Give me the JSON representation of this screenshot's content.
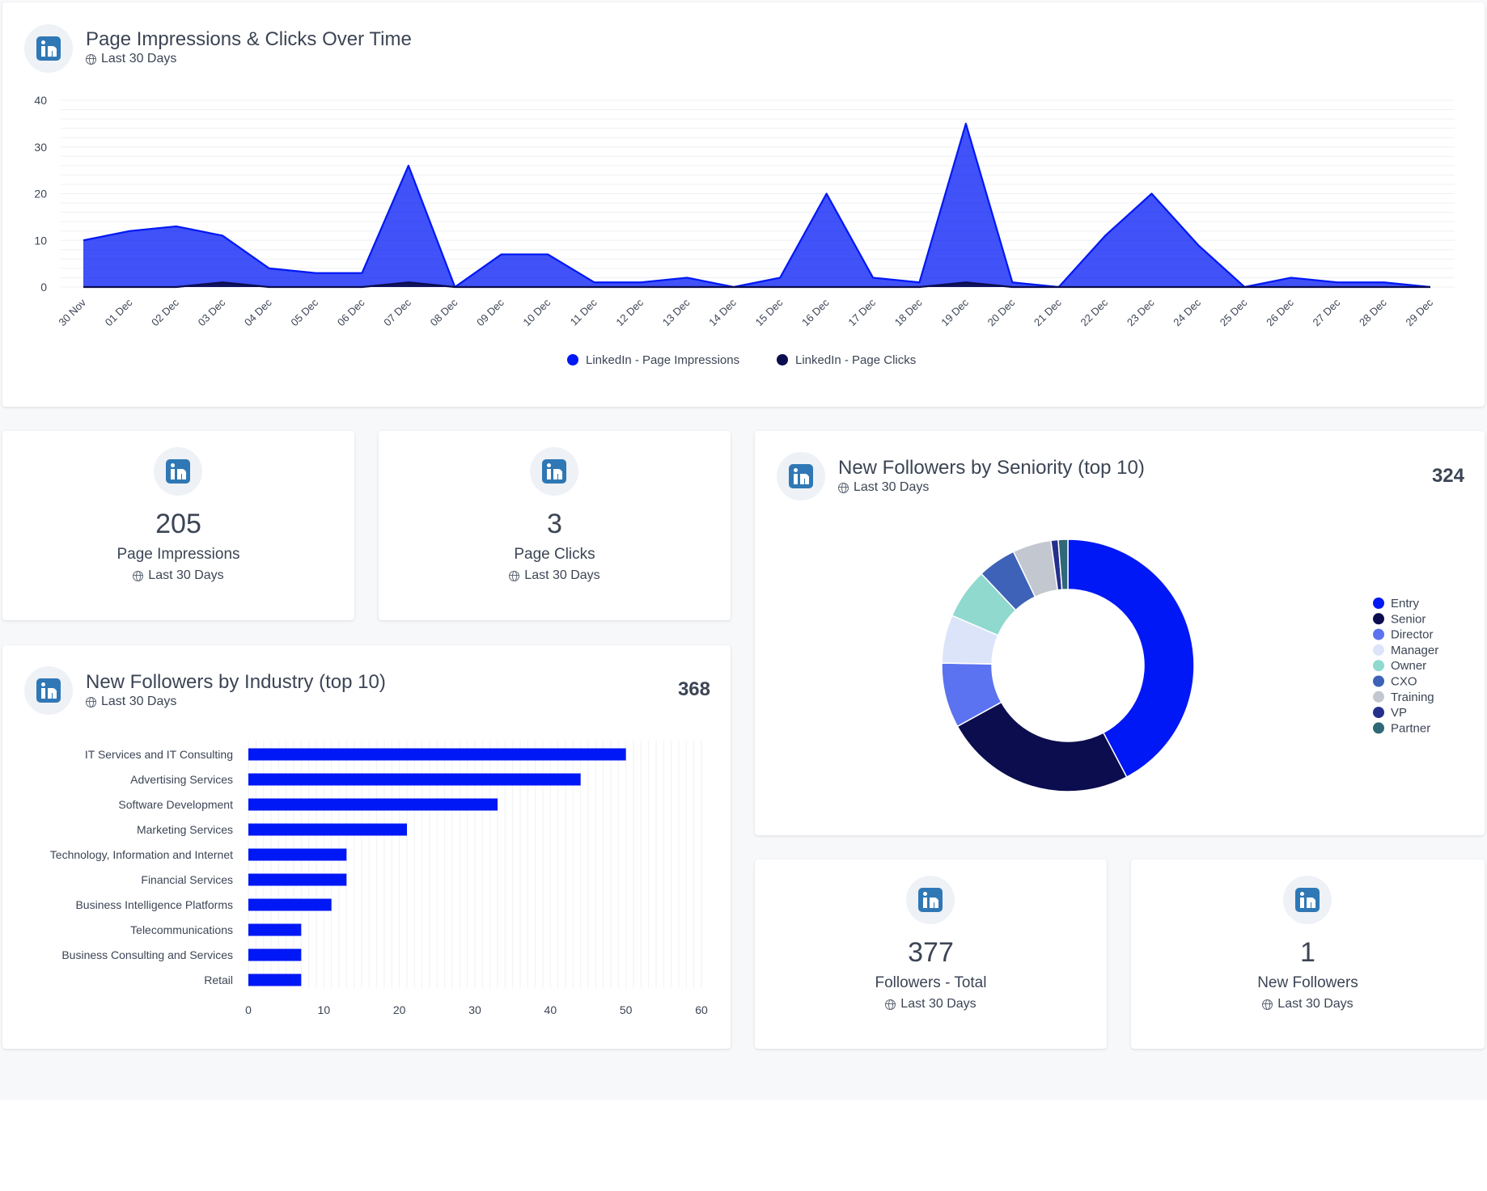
{
  "colors": {
    "impressions": "#0018f5",
    "clicks": "#0b0d4f",
    "bar": "#0018f5",
    "text": "#3c4555",
    "linkedin": "#2f78b5"
  },
  "icon_names": [
    "linkedin-icon",
    "globe-icon"
  ],
  "line_card": {
    "title": "Page Impressions & Clicks Over Time",
    "subtitle": "Last 30 Days"
  },
  "kpis": [
    {
      "value": "205",
      "label": "Page Impressions",
      "subtitle": "Last 30 Days"
    },
    {
      "value": "3",
      "label": "Page Clicks",
      "subtitle": "Last 30 Days"
    },
    {
      "value": "377",
      "label": "Followers - Total",
      "subtitle": "Last 30 Days"
    },
    {
      "value": "1",
      "label": "New Followers",
      "subtitle": "Last 30 Days"
    }
  ],
  "industry_card": {
    "title": "New Followers by Industry (top 10)",
    "subtitle": "Last 30 Days",
    "total": "368"
  },
  "seniority_card": {
    "title": "New Followers by Seniority (top 10)",
    "subtitle": "Last 30 Days",
    "total": "324"
  },
  "chart_data": [
    {
      "type": "area",
      "title": "Page Impressions & Clicks Over Time",
      "x": [
        "30 Nov",
        "01 Dec",
        "02 Dec",
        "03 Dec",
        "04 Dec",
        "05 Dec",
        "06 Dec",
        "07 Dec",
        "08 Dec",
        "09 Dec",
        "10 Dec",
        "11 Dec",
        "12 Dec",
        "13 Dec",
        "14 Dec",
        "15 Dec",
        "16 Dec",
        "17 Dec",
        "18 Dec",
        "19 Dec",
        "20 Dec",
        "21 Dec",
        "22 Dec",
        "23 Dec",
        "24 Dec",
        "25 Dec",
        "26 Dec",
        "27 Dec",
        "28 Dec",
        "29 Dec"
      ],
      "series": [
        {
          "name": "LinkedIn - Page Impressions",
          "color": "#0018f5",
          "values": [
            10,
            12,
            13,
            11,
            4,
            3,
            3,
            26,
            0,
            7,
            7,
            1,
            1,
            2,
            0,
            2,
            20,
            2,
            1,
            35,
            1,
            0,
            11,
            20,
            9,
            0,
            2,
            1,
            1,
            0
          ]
        },
        {
          "name": "LinkedIn - Page Clicks",
          "color": "#0b0d4f",
          "values": [
            0,
            0,
            0,
            1,
            0,
            0,
            0,
            1,
            0,
            0,
            0,
            0,
            0,
            0,
            0,
            0,
            0,
            0,
            0,
            1,
            0,
            0,
            0,
            0,
            0,
            0,
            0,
            0,
            0,
            0
          ]
        }
      ],
      "yticks": [
        0,
        10,
        20,
        30,
        40
      ],
      "ylim": [
        0,
        40
      ],
      "grid": true,
      "legend": "bottom-center"
    },
    {
      "type": "bar",
      "orientation": "horizontal",
      "title": "New Followers by Industry (top 10)",
      "categories": [
        "IT Services and IT Consulting",
        "Advertising Services",
        "Software Development",
        "Marketing Services",
        "Technology, Information and Internet",
        "Financial Services",
        "Business Intelligence Platforms",
        "Telecommunications",
        "Business Consulting and Services",
        "Retail"
      ],
      "values": [
        50,
        44,
        33,
        21,
        13,
        13,
        11,
        7,
        7,
        7
      ],
      "xticks": [
        0,
        10,
        20,
        30,
        40,
        50,
        60
      ],
      "xlim": [
        0,
        60
      ],
      "color": "#0018f5"
    },
    {
      "type": "pie",
      "donut": true,
      "title": "New Followers by Seniority (top 10)",
      "labels": [
        "Entry",
        "Senior",
        "Director",
        "Manager",
        "Owner",
        "CXO",
        "Training",
        "VP",
        "Partner"
      ],
      "values": [
        137,
        80,
        27,
        20,
        21,
        16,
        16,
        3,
        4
      ],
      "colors": [
        "#0018f5",
        "#0b0d4f",
        "#5b73f0",
        "#dce4fa",
        "#8fd9cf",
        "#3d62b7",
        "#c3c8d0",
        "#252f8c",
        "#2f6877"
      ],
      "legend": "right"
    }
  ]
}
